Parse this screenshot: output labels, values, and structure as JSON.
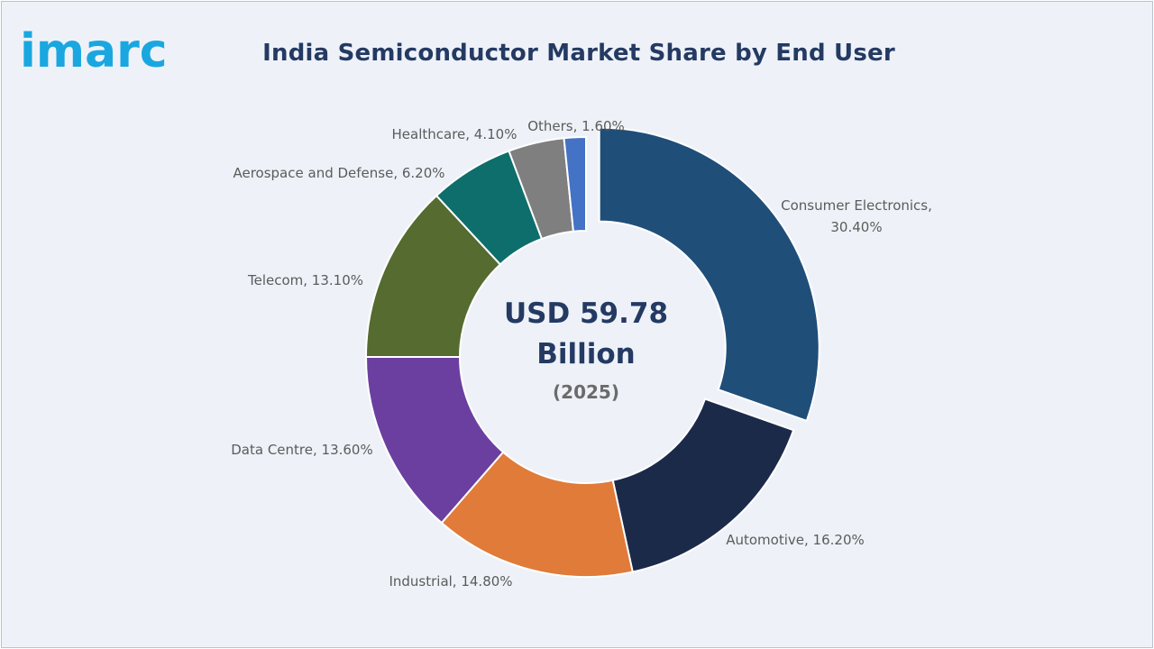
{
  "brand": {
    "logo_text": "imarc",
    "logo_color": "#1aa7e0"
  },
  "chart_data": {
    "type": "pie",
    "title": "India Semiconductor Market Share by End User",
    "center_text": {
      "line1": "USD 59.78",
      "line2": "Billion",
      "line3": "(2025)"
    },
    "unit": "%",
    "slices": [
      {
        "label": "Consumer Electronics",
        "value": 30.4,
        "display": "30.40%",
        "color": "#1f4e79",
        "exploded": true
      },
      {
        "label": "Automotive",
        "value": 16.2,
        "display": "16.20%",
        "color": "#1c2a4a"
      },
      {
        "label": "Industrial",
        "value": 14.8,
        "display": "14.80%",
        "color": "#e07b39"
      },
      {
        "label": "Data Centre",
        "value": 13.6,
        "display": "13.60%",
        "color": "#6b3fa0"
      },
      {
        "label": "Telecom",
        "value": 13.1,
        "display": "13.10%",
        "color": "#556b2f"
      },
      {
        "label": "Aerospace and Defense",
        "value": 6.2,
        "display": "6.20%",
        "color": "#0e6e6b"
      },
      {
        "label": "Healthcare",
        "value": 4.1,
        "display": "4.10%",
        "color": "#7f7f7f"
      },
      {
        "label": "Others",
        "value": 1.6,
        "display": "1.60%",
        "color": "#4472c4"
      }
    ]
  }
}
